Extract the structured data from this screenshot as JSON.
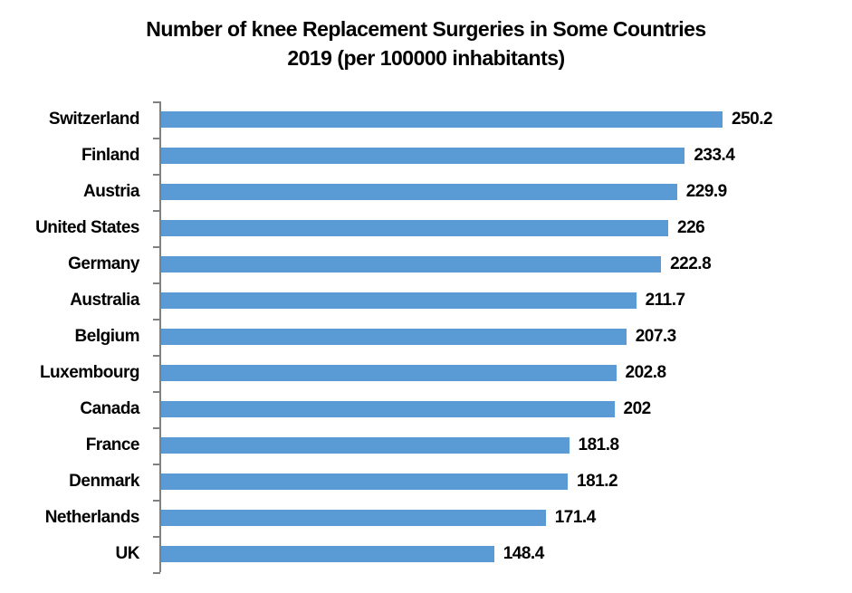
{
  "chart_data": {
    "type": "bar",
    "orientation": "horizontal",
    "title": "Number of knee Replacement Surgeries in Some Countries 2019 (per 100000 inhabitants)",
    "title_line1": "Number of knee Replacement Surgeries in Some Countries",
    "title_line2": "2019 (per 100000 inhabitants)",
    "categories": [
      "Switzerland",
      "Finland",
      "Austria",
      "United States",
      "Germany",
      "Australia",
      "Belgium",
      "Luxembourg",
      "Canada",
      "France",
      "Denmark",
      "Netherlands",
      "UK"
    ],
    "values": [
      250.2,
      233.4,
      229.9,
      226,
      222.8,
      211.7,
      207.3,
      202.8,
      202,
      181.8,
      181.2,
      171.4,
      148.4
    ],
    "value_labels": [
      "250.2",
      "233.4",
      "229.9",
      "226",
      "222.8",
      "211.7",
      "207.3",
      "202.8",
      "202",
      "181.8",
      "181.2",
      "171.4",
      "148.4"
    ],
    "xlim": [
      0,
      260
    ],
    "xlabel": "",
    "ylabel": "",
    "grid": false,
    "legend": false,
    "data_labels": true,
    "bar_color": "#5B9BD5",
    "axis_color": "#808080",
    "text_color": "#000000",
    "background_color": "#FFFFFF"
  }
}
